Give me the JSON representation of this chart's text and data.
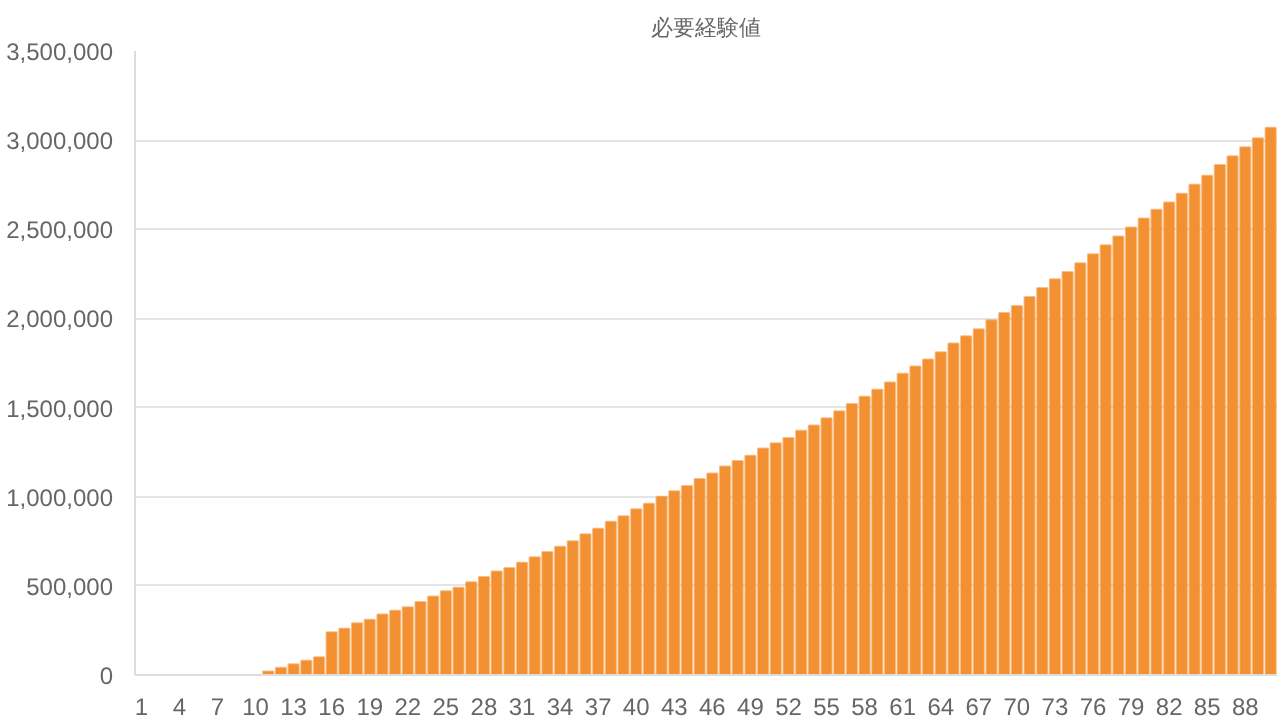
{
  "chart_data": {
    "type": "bar",
    "title": "必要経験値",
    "categories": [
      "1",
      null,
      null,
      "4",
      null,
      null,
      "7",
      null,
      null,
      "10",
      null,
      null,
      "13",
      null,
      null,
      "16",
      null,
      null,
      "19",
      null,
      null,
      "22",
      null,
      null,
      "25",
      null,
      null,
      "28",
      null,
      null,
      "31",
      null,
      null,
      "34",
      null,
      null,
      "37",
      null,
      null,
      "40",
      null,
      null,
      "43",
      null,
      null,
      "46",
      null,
      null,
      "49",
      null,
      null,
      "52",
      null,
      null,
      "55",
      null,
      null,
      "58",
      null,
      null,
      "61",
      null,
      null,
      "64",
      null,
      null,
      "67",
      null,
      null,
      "70",
      null,
      null,
      "73",
      null,
      null,
      "76",
      null,
      null,
      "79",
      null,
      null,
      "82",
      null,
      null,
      "85",
      null,
      null,
      "88",
      null,
      null
    ],
    "values": [
      0,
      0,
      0,
      0,
      0,
      0,
      0,
      0,
      0,
      0,
      20000,
      40000,
      60000,
      80000,
      100000,
      240000,
      260000,
      290000,
      310000,
      340000,
      360000,
      380000,
      410000,
      440000,
      470000,
      490000,
      520000,
      550000,
      580000,
      600000,
      630000,
      660000,
      690000,
      720000,
      750000,
      790000,
      820000,
      860000,
      890000,
      930000,
      960000,
      1000000,
      1030000,
      1060000,
      1100000,
      1130000,
      1170000,
      1200000,
      1230000,
      1270000,
      1300000,
      1330000,
      1370000,
      1400000,
      1440000,
      1480000,
      1520000,
      1560000,
      1600000,
      1640000,
      1690000,
      1730000,
      1770000,
      1810000,
      1860000,
      1900000,
      1940000,
      1990000,
      2030000,
      2070000,
      2120000,
      2170000,
      2220000,
      2260000,
      2310000,
      2360000,
      2410000,
      2460000,
      2510000,
      2560000,
      2610000,
      2650000,
      2700000,
      2750000,
      2800000,
      2860000,
      2910000,
      2960000,
      3010000,
      3070000
    ],
    "color": "#f39132",
    "ylim": [
      0,
      3500000
    ],
    "yticks": [
      {
        "value": 0,
        "label": "0"
      },
      {
        "value": 500000,
        "label": "500,000"
      },
      {
        "value": 1000000,
        "label": "1,000,000"
      },
      {
        "value": 1500000,
        "label": "1,500,000"
      },
      {
        "value": 2000000,
        "label": "2,000,000"
      },
      {
        "value": 2500000,
        "label": "2,500,000"
      },
      {
        "value": 3000000,
        "label": "3,000,000"
      },
      {
        "value": 3500000,
        "label": "3,500,000"
      }
    ],
    "grid": "y"
  }
}
